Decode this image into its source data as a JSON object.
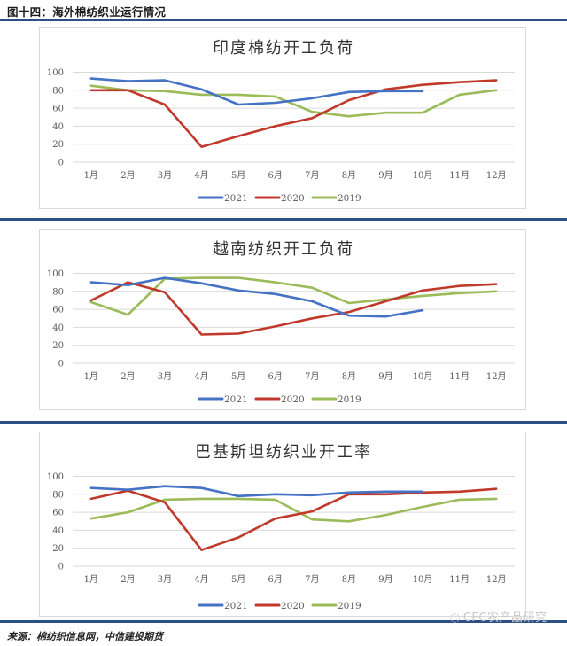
{
  "figure": {
    "title": "图十四：海外棉纺织业运行情况",
    "source": "来源：棉纺织信息网，中信建投期货",
    "watermark": "CFC农产品研究",
    "watermark_icon": "wechat-icon"
  },
  "colors": {
    "2021": "#4472c4",
    "2020": "#c0392b",
    "2019": "#9bbb59",
    "separator": "#2c4f86",
    "grid": "#d9d9d9"
  },
  "chart_data": [
    {
      "type": "line",
      "title": "印度棉纺开工负荷",
      "categories": [
        "1月",
        "2月",
        "3月",
        "4月",
        "5月",
        "6月",
        "7月",
        "8月",
        "9月",
        "10月",
        "11月",
        "12月"
      ],
      "series": [
        {
          "name": "2021",
          "values": [
            93,
            90,
            91,
            81,
            64,
            66,
            71,
            78,
            79,
            79,
            null,
            null
          ]
        },
        {
          "name": "2020",
          "values": [
            80,
            80,
            64,
            17,
            29,
            40,
            49,
            69,
            81,
            86,
            89,
            91
          ]
        },
        {
          "name": "2019",
          "values": [
            85,
            80,
            79,
            75,
            75,
            73,
            56,
            51,
            55,
            55,
            75,
            80
          ]
        }
      ],
      "xlabel": "",
      "ylabel": "",
      "yticks": [
        0,
        20,
        40,
        60,
        80,
        100
      ],
      "ylim": [
        0,
        100
      ],
      "grid": true,
      "legend_position": "bottom"
    },
    {
      "type": "line",
      "title": "越南纺织开工负荷",
      "categories": [
        "1月",
        "2月",
        "3月",
        "4月",
        "5月",
        "6月",
        "7月",
        "8月",
        "9月",
        "10月",
        "11月",
        "12月"
      ],
      "series": [
        {
          "name": "2021",
          "values": [
            90,
            87,
            95,
            89,
            81,
            77,
            69,
            53,
            52,
            59,
            null,
            null
          ]
        },
        {
          "name": "2020",
          "values": [
            70,
            90,
            79,
            32,
            33,
            41,
            50,
            57,
            69,
            81,
            86,
            88
          ]
        },
        {
          "name": "2019",
          "values": [
            68,
            54,
            94,
            95,
            95,
            90,
            84,
            67,
            71,
            75,
            78,
            80
          ]
        }
      ],
      "xlabel": "",
      "ylabel": "",
      "yticks": [
        0,
        20,
        40,
        60,
        80,
        100
      ],
      "ylim": [
        0,
        100
      ],
      "grid": true,
      "legend_position": "bottom"
    },
    {
      "type": "line",
      "title": "巴基斯坦纺织业开工率",
      "categories": [
        "1月",
        "2月",
        "3月",
        "4月",
        "5月",
        "6月",
        "7月",
        "8月",
        "9月",
        "10月",
        "11月",
        "12月"
      ],
      "series": [
        {
          "name": "2021",
          "values": [
            87,
            85,
            89,
            87,
            78,
            80,
            79,
            82,
            83,
            83,
            null,
            null
          ]
        },
        {
          "name": "2020",
          "values": [
            75,
            84,
            71,
            18,
            32,
            53,
            61,
            80,
            80,
            82,
            83,
            86
          ]
        },
        {
          "name": "2019",
          "values": [
            53,
            60,
            74,
            75,
            75,
            74,
            52,
            50,
            57,
            66,
            74,
            75
          ]
        }
      ],
      "xlabel": "",
      "ylabel": "",
      "yticks": [
        0,
        20,
        40,
        60,
        80,
        100
      ],
      "ylim": [
        0,
        100
      ],
      "grid": true,
      "legend_position": "bottom"
    }
  ]
}
